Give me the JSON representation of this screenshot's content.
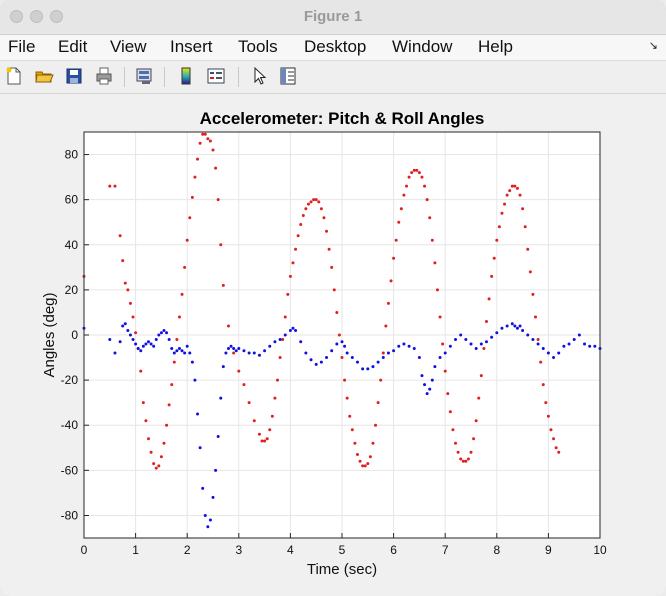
{
  "window": {
    "title": "Figure 1"
  },
  "menubar": {
    "items": [
      {
        "label": "File"
      },
      {
        "label": "Edit"
      },
      {
        "label": "View"
      },
      {
        "label": "Insert"
      },
      {
        "label": "Tools"
      },
      {
        "label": "Desktop"
      },
      {
        "label": "Window"
      },
      {
        "label": "Help"
      }
    ]
  },
  "toolbar": {
    "buttons": [
      "new-figure-icon",
      "open-file-icon",
      "save-icon",
      "print-icon",
      "print-preview-icon",
      "colorbar-icon",
      "legend-icon",
      "pointer-icon",
      "property-inspector-icon"
    ]
  },
  "colors": {
    "pitch": "#e02020",
    "roll": "#1010e0",
    "axes_bg": "#ffffff",
    "grid": "#e6e6e6"
  },
  "chart_data": {
    "type": "scatter",
    "title": "Accelerometer: Pitch & Roll Angles",
    "xlabel": "Time (sec)",
    "ylabel": "Angles (deg)",
    "xlim": [
      0,
      10
    ],
    "ylim": [
      -90,
      90
    ],
    "xticks": [
      "0",
      "1",
      "2",
      "3",
      "4",
      "5",
      "6",
      "7",
      "8",
      "9",
      "10"
    ],
    "yticks": [
      "-80",
      "-60",
      "-40",
      "-20",
      "0",
      "20",
      "40",
      "60",
      "80"
    ],
    "grid": true,
    "series": [
      {
        "color": "#e02020",
        "points": [
          [
            0.0,
            26
          ],
          [
            0.5,
            66
          ],
          [
            0.6,
            66
          ],
          [
            0.7,
            44
          ],
          [
            0.75,
            33
          ],
          [
            0.8,
            23
          ],
          [
            0.85,
            20
          ],
          [
            0.9,
            14
          ],
          [
            0.95,
            8
          ],
          [
            1.0,
            1
          ],
          [
            1.05,
            -6
          ],
          [
            1.1,
            -16
          ],
          [
            1.15,
            -30
          ],
          [
            1.2,
            -38
          ],
          [
            1.25,
            -46
          ],
          [
            1.3,
            -52
          ],
          [
            1.35,
            -57
          ],
          [
            1.4,
            -59
          ],
          [
            1.45,
            -58
          ],
          [
            1.5,
            -54
          ],
          [
            1.55,
            -48
          ],
          [
            1.6,
            -40
          ],
          [
            1.65,
            -31
          ],
          [
            1.7,
            -22
          ],
          [
            1.75,
            -12
          ],
          [
            1.8,
            -2
          ],
          [
            1.85,
            8
          ],
          [
            1.9,
            18
          ],
          [
            1.95,
            30
          ],
          [
            2.0,
            42
          ],
          [
            2.05,
            52
          ],
          [
            2.1,
            61
          ],
          [
            2.15,
            70
          ],
          [
            2.2,
            78
          ],
          [
            2.25,
            85
          ],
          [
            2.3,
            89
          ],
          [
            2.35,
            89
          ],
          [
            2.4,
            87
          ],
          [
            2.45,
            86
          ],
          [
            2.5,
            82
          ],
          [
            2.55,
            74
          ],
          [
            2.6,
            60
          ],
          [
            2.65,
            40
          ],
          [
            2.7,
            22
          ],
          [
            2.8,
            4
          ],
          [
            2.9,
            -8
          ],
          [
            3.0,
            -16
          ],
          [
            3.1,
            -22
          ],
          [
            3.2,
            -30
          ],
          [
            3.3,
            -38
          ],
          [
            3.4,
            -44
          ],
          [
            3.45,
            -47
          ],
          [
            3.5,
            -47
          ],
          [
            3.55,
            -46
          ],
          [
            3.6,
            -42
          ],
          [
            3.65,
            -36
          ],
          [
            3.7,
            -28
          ],
          [
            3.75,
            -20
          ],
          [
            3.8,
            -10
          ],
          [
            3.85,
            -2
          ],
          [
            3.9,
            8
          ],
          [
            3.95,
            18
          ],
          [
            4.0,
            26
          ],
          [
            4.05,
            32
          ],
          [
            4.1,
            38
          ],
          [
            4.15,
            44
          ],
          [
            4.2,
            49
          ],
          [
            4.25,
            53
          ],
          [
            4.3,
            56
          ],
          [
            4.35,
            58
          ],
          [
            4.4,
            59
          ],
          [
            4.45,
            60
          ],
          [
            4.5,
            60
          ],
          [
            4.55,
            59
          ],
          [
            4.6,
            56
          ],
          [
            4.65,
            52
          ],
          [
            4.7,
            46
          ],
          [
            4.75,
            38
          ],
          [
            4.8,
            30
          ],
          [
            4.85,
            20
          ],
          [
            4.9,
            10
          ],
          [
            4.95,
            0
          ],
          [
            5.0,
            -10
          ],
          [
            5.05,
            -20
          ],
          [
            5.1,
            -28
          ],
          [
            5.15,
            -36
          ],
          [
            5.2,
            -42
          ],
          [
            5.25,
            -48
          ],
          [
            5.3,
            -53
          ],
          [
            5.35,
            -56
          ],
          [
            5.4,
            -58
          ],
          [
            5.45,
            -58
          ],
          [
            5.5,
            -57
          ],
          [
            5.55,
            -54
          ],
          [
            5.6,
            -48
          ],
          [
            5.65,
            -40
          ],
          [
            5.7,
            -30
          ],
          [
            5.75,
            -20
          ],
          [
            5.8,
            -8
          ],
          [
            5.85,
            4
          ],
          [
            5.9,
            14
          ],
          [
            5.95,
            24
          ],
          [
            6.0,
            34
          ],
          [
            6.05,
            42
          ],
          [
            6.1,
            50
          ],
          [
            6.15,
            56
          ],
          [
            6.2,
            62
          ],
          [
            6.25,
            66
          ],
          [
            6.3,
            70
          ],
          [
            6.35,
            72
          ],
          [
            6.4,
            73
          ],
          [
            6.45,
            73
          ],
          [
            6.5,
            72
          ],
          [
            6.55,
            70
          ],
          [
            6.6,
            66
          ],
          [
            6.65,
            60
          ],
          [
            6.7,
            52
          ],
          [
            6.75,
            42
          ],
          [
            6.8,
            32
          ],
          [
            6.85,
            20
          ],
          [
            6.9,
            8
          ],
          [
            6.95,
            -4
          ],
          [
            7.0,
            -16
          ],
          [
            7.05,
            -26
          ],
          [
            7.1,
            -34
          ],
          [
            7.15,
            -42
          ],
          [
            7.2,
            -48
          ],
          [
            7.25,
            -52
          ],
          [
            7.3,
            -55
          ],
          [
            7.35,
            -56
          ],
          [
            7.4,
            -56
          ],
          [
            7.45,
            -55
          ],
          [
            7.5,
            -52
          ],
          [
            7.55,
            -46
          ],
          [
            7.6,
            -38
          ],
          [
            7.65,
            -28
          ],
          [
            7.7,
            -18
          ],
          [
            7.75,
            -6
          ],
          [
            7.8,
            6
          ],
          [
            7.85,
            16
          ],
          [
            7.9,
            26
          ],
          [
            7.95,
            34
          ],
          [
            8.0,
            42
          ],
          [
            8.05,
            48
          ],
          [
            8.1,
            54
          ],
          [
            8.15,
            58
          ],
          [
            8.2,
            62
          ],
          [
            8.25,
            64
          ],
          [
            8.3,
            66
          ],
          [
            8.35,
            66
          ],
          [
            8.4,
            65
          ],
          [
            8.45,
            62
          ],
          [
            8.5,
            56
          ],
          [
            8.55,
            48
          ],
          [
            8.6,
            38
          ],
          [
            8.65,
            28
          ],
          [
            8.7,
            18
          ],
          [
            8.75,
            8
          ],
          [
            8.8,
            -2
          ],
          [
            8.85,
            -12
          ],
          [
            8.9,
            -22
          ],
          [
            8.95,
            -30
          ],
          [
            9.0,
            -36
          ],
          [
            9.05,
            -42
          ],
          [
            9.1,
            -46
          ],
          [
            9.15,
            -50
          ],
          [
            9.2,
            -52
          ]
        ]
      },
      {
        "color": "#1010e0",
        "points": [
          [
            0.0,
            3
          ],
          [
            0.5,
            -2
          ],
          [
            0.6,
            -8
          ],
          [
            0.7,
            -3
          ],
          [
            0.75,
            4
          ],
          [
            0.8,
            5
          ],
          [
            0.85,
            2
          ],
          [
            0.9,
            0
          ],
          [
            0.95,
            -2
          ],
          [
            1.0,
            -4
          ],
          [
            1.05,
            -6
          ],
          [
            1.1,
            -7
          ],
          [
            1.15,
            -5
          ],
          [
            1.2,
            -4
          ],
          [
            1.25,
            -3
          ],
          [
            1.3,
            -4
          ],
          [
            1.35,
            -5
          ],
          [
            1.4,
            -2
          ],
          [
            1.45,
            0
          ],
          [
            1.5,
            1
          ],
          [
            1.55,
            2
          ],
          [
            1.6,
            1
          ],
          [
            1.65,
            -2
          ],
          [
            1.7,
            -6
          ],
          [
            1.75,
            -8
          ],
          [
            1.8,
            -7
          ],
          [
            1.85,
            -6
          ],
          [
            1.9,
            -7
          ],
          [
            1.95,
            -8
          ],
          [
            2.0,
            -5
          ],
          [
            2.05,
            -8
          ],
          [
            2.1,
            -12
          ],
          [
            2.15,
            -20
          ],
          [
            2.2,
            -35
          ],
          [
            2.25,
            -50
          ],
          [
            2.3,
            -68
          ],
          [
            2.35,
            -80
          ],
          [
            2.4,
            -85
          ],
          [
            2.45,
            -82
          ],
          [
            2.5,
            -72
          ],
          [
            2.55,
            -60
          ],
          [
            2.6,
            -45
          ],
          [
            2.65,
            -28
          ],
          [
            2.7,
            -14
          ],
          [
            2.75,
            -8
          ],
          [
            2.8,
            -6
          ],
          [
            2.85,
            -5
          ],
          [
            2.9,
            -6
          ],
          [
            2.95,
            -7
          ],
          [
            3.0,
            -6
          ],
          [
            3.1,
            -7
          ],
          [
            3.2,
            -8
          ],
          [
            3.3,
            -8
          ],
          [
            3.4,
            -9
          ],
          [
            3.5,
            -7
          ],
          [
            3.6,
            -5
          ],
          [
            3.7,
            -3
          ],
          [
            3.8,
            -2
          ],
          [
            3.9,
            0
          ],
          [
            4.0,
            2
          ],
          [
            4.05,
            3
          ],
          [
            4.1,
            2
          ],
          [
            4.2,
            -3
          ],
          [
            4.3,
            -8
          ],
          [
            4.4,
            -11
          ],
          [
            4.5,
            -13
          ],
          [
            4.6,
            -12
          ],
          [
            4.7,
            -10
          ],
          [
            4.8,
            -7
          ],
          [
            4.9,
            -4
          ],
          [
            5.0,
            -3
          ],
          [
            5.05,
            -5
          ],
          [
            5.1,
            -8
          ],
          [
            5.2,
            -10
          ],
          [
            5.3,
            -12
          ],
          [
            5.4,
            -15
          ],
          [
            5.5,
            -15
          ],
          [
            5.6,
            -14
          ],
          [
            5.7,
            -12
          ],
          [
            5.8,
            -10
          ],
          [
            5.9,
            -8
          ],
          [
            6.0,
            -7
          ],
          [
            6.1,
            -5
          ],
          [
            6.2,
            -4
          ],
          [
            6.3,
            -5
          ],
          [
            6.4,
            -6
          ],
          [
            6.5,
            -10
          ],
          [
            6.55,
            -18
          ],
          [
            6.6,
            -22
          ],
          [
            6.65,
            -26
          ],
          [
            6.7,
            -24
          ],
          [
            6.75,
            -20
          ],
          [
            6.8,
            -14
          ],
          [
            6.9,
            -10
          ],
          [
            7.0,
            -8
          ],
          [
            7.1,
            -5
          ],
          [
            7.2,
            -2
          ],
          [
            7.3,
            0
          ],
          [
            7.4,
            -2
          ],
          [
            7.5,
            -4
          ],
          [
            7.6,
            -6
          ],
          [
            7.7,
            -4
          ],
          [
            7.8,
            -3
          ],
          [
            7.9,
            -1
          ],
          [
            8.0,
            1
          ],
          [
            8.1,
            3
          ],
          [
            8.2,
            4
          ],
          [
            8.3,
            5
          ],
          [
            8.35,
            4
          ],
          [
            8.4,
            3
          ],
          [
            8.45,
            4
          ],
          [
            8.5,
            2
          ],
          [
            8.6,
            0
          ],
          [
            8.7,
            -2
          ],
          [
            8.8,
            -4
          ],
          [
            8.9,
            -6
          ],
          [
            9.0,
            -8
          ],
          [
            9.1,
            -10
          ],
          [
            9.2,
            -8
          ],
          [
            9.3,
            -5
          ],
          [
            9.4,
            -4
          ],
          [
            9.5,
            -2
          ],
          [
            9.6,
            0
          ],
          [
            9.7,
            -4
          ],
          [
            9.8,
            -5
          ],
          [
            9.9,
            -5
          ],
          [
            10.0,
            -6
          ]
        ]
      }
    ]
  }
}
